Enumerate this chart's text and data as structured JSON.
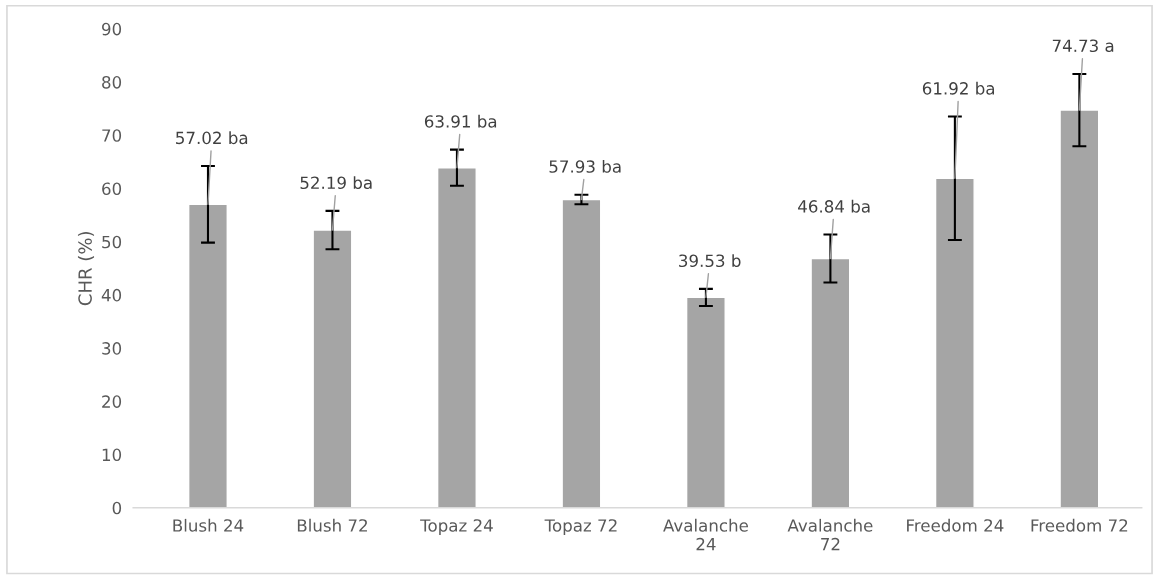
{
  "chart_data": {
    "type": "bar",
    "ylabel": "CHR (%)",
    "categories": [
      "Blush 24",
      "Blush 72",
      "Topaz 24",
      "Topaz 72",
      "Avalanche 24",
      "Avalanche 72",
      "Freedom 24",
      "Freedom 72"
    ],
    "values": [
      57.02,
      52.19,
      63.91,
      57.93,
      39.53,
      46.84,
      61.92,
      74.73
    ],
    "errors": [
      7.2,
      3.6,
      3.4,
      0.9,
      1.6,
      4.5,
      11.6,
      6.8
    ],
    "value_labels": [
      "57.02 ba",
      "52.19 ba",
      "63.91 ba",
      "57.93 ba",
      "39.53 b",
      "46.84 ba",
      "61.92 ba",
      "74.73 a"
    ],
    "color": "#a5a5a5",
    "ylim": [
      0,
      90
    ],
    "yticks": [
      0,
      10,
      20,
      30,
      40,
      50,
      60,
      70,
      80,
      90
    ],
    "grid": false
  }
}
